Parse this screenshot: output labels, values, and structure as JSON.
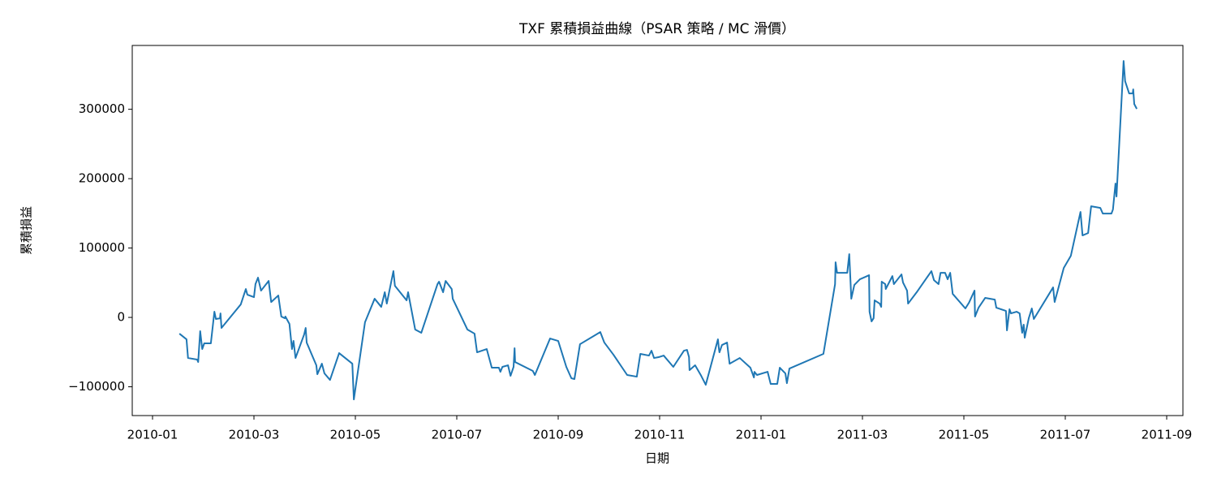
{
  "chart_data": {
    "type": "line",
    "title": "TXF 累積損益曲線（PSAR 策略 / MC 滑價）",
    "xlabel": "日期",
    "ylabel": "累積損益",
    "color": "#1f77b4",
    "xlim": [
      -0.4,
      20.32
    ],
    "ylim": [
      -141500,
      392000
    ],
    "xticks": [
      {
        "value": 0,
        "label": "2010-01"
      },
      {
        "value": 2,
        "label": "2010-03"
      },
      {
        "value": 4,
        "label": "2010-05"
      },
      {
        "value": 6,
        "label": "2010-07"
      },
      {
        "value": 8,
        "label": "2010-09"
      },
      {
        "value": 10,
        "label": "2010-11"
      },
      {
        "value": 12,
        "label": "2011-01"
      },
      {
        "value": 14,
        "label": "2011-03"
      },
      {
        "value": 16,
        "label": "2011-05"
      },
      {
        "value": 18,
        "label": "2011-07"
      },
      {
        "value": 20,
        "label": "2011-09"
      }
    ],
    "yticks": [
      {
        "value": -100000,
        "label": "−100000"
      },
      0,
      100000,
      200000,
      300000
    ],
    "x": [
      0.53,
      0.67,
      0.7,
      0.88,
      0.9,
      0.94,
      0.98,
      1.02,
      1.15,
      1.22,
      1.25,
      1.33,
      1.34,
      1.36,
      1.74,
      1.84,
      1.87,
      2.0,
      2.03,
      2.08,
      2.14,
      2.29,
      2.34,
      2.48,
      2.54,
      2.61,
      2.62,
      2.7,
      2.75,
      2.78,
      2.82,
      2.99,
      3.02,
      3.04,
      3.23,
      3.25,
      3.34,
      3.39,
      3.5,
      3.68,
      3.94,
      3.97,
      4.19,
      4.38,
      4.51,
      4.58,
      4.62,
      4.75,
      4.78,
      5.01,
      5.04,
      5.18,
      5.3,
      5.62,
      5.65,
      5.73,
      5.78,
      5.9,
      5.92,
      6.21,
      6.35,
      6.4,
      6.59,
      6.66,
      6.69,
      6.83,
      6.86,
      6.9,
      7.01,
      7.06,
      7.12,
      7.14,
      7.15,
      7.5,
      7.54,
      7.84,
      8.0,
      8.16,
      8.26,
      8.32,
      8.43,
      8.83,
      8.91,
      9.09,
      9.36,
      9.55,
      9.62,
      9.79,
      9.84,
      9.89,
      9.98,
      10.08,
      10.27,
      10.48,
      10.54,
      10.58,
      10.59,
      10.7,
      10.82,
      10.91,
      11.15,
      11.17,
      11.18,
      11.23,
      11.33,
      11.38,
      11.58,
      11.79,
      11.86,
      11.87,
      11.92,
      12.13,
      12.19,
      12.32,
      12.37,
      12.48,
      12.51,
      12.56,
      13.23,
      13.46,
      13.47,
      13.5,
      13.7,
      13.74,
      13.78,
      13.84,
      13.95,
      14.06,
      14.13,
      14.14,
      14.18,
      14.22,
      14.24,
      14.34,
      14.37,
      14.38,
      14.45,
      14.46,
      14.59,
      14.62,
      14.77,
      14.8,
      14.88,
      14.9,
      15.07,
      15.36,
      15.41,
      15.5,
      15.54,
      15.63,
      15.68,
      15.73,
      15.78,
      16.03,
      16.1,
      16.21,
      16.22,
      16.29,
      16.42,
      16.61,
      16.64,
      16.83,
      16.85,
      16.9,
      16.93,
      17.04,
      17.1,
      17.15,
      17.18,
      17.2,
      17.28,
      17.34,
      17.38,
      17.76,
      17.79,
      17.97,
      18.11,
      18.3,
      18.34,
      18.45,
      18.51,
      18.69,
      18.74,
      18.91,
      18.94,
      18.99,
      19.01,
      19.15,
      19.18,
      19.26,
      19.33,
      19.34,
      19.36,
      19.41
    ],
    "values": [
      -23400,
      -31600,
      -58500,
      -60800,
      -64300,
      -19900,
      -45600,
      -37400,
      -37400,
      8200,
      -2300,
      -1200,
      5800,
      -15200,
      18700,
      40900,
      32800,
      29200,
      48000,
      57300,
      38600,
      52600,
      22200,
      31600,
      1200,
      -1200,
      1200,
      -9400,
      -45600,
      -33900,
      -58500,
      -24600,
      -15200,
      -36300,
      -69000,
      -81900,
      -66700,
      -80700,
      -90100,
      -51500,
      -66700,
      -118200,
      -7000,
      26900,
      15200,
      36300,
      19900,
      66700,
      45600,
      24600,
      36300,
      -17500,
      -22200,
      48000,
      51500,
      36300,
      52600,
      40900,
      26900,
      -17500,
      -23400,
      -50300,
      -45600,
      -64300,
      -72500,
      -72500,
      -78400,
      -71300,
      -69000,
      -84200,
      -71300,
      -44400,
      -64300,
      -77200,
      -83000,
      -30400,
      -33900,
      -71300,
      -87700,
      -88900,
      -38600,
      -21100,
      -36300,
      -53800,
      -83000,
      -85400,
      -52600,
      -55000,
      -48000,
      -58500,
      -57300,
      -55000,
      -71300,
      -48000,
      -46800,
      -57300,
      -76000,
      -69000,
      -84200,
      -97100,
      -31600,
      -45600,
      -50300,
      -39800,
      -36300,
      -66700,
      -58500,
      -72500,
      -86600,
      -78400,
      -83000,
      -78400,
      -95900,
      -95900,
      -72500,
      -80700,
      -94800,
      -73700,
      -52600,
      48000,
      79500,
      64300,
      64300,
      91200,
      26900,
      46800,
      55000,
      58500,
      60800,
      8200,
      -5800,
      -1200,
      24600,
      19900,
      15200,
      51500,
      48000,
      40900,
      59600,
      48000,
      62000,
      50300,
      38600,
      19900,
      36300,
      66700,
      53800,
      48000,
      64300,
      64300,
      55000,
      64300,
      33900,
      12900,
      21100,
      38600,
      1200,
      14000,
      28100,
      25700,
      14000,
      9400,
      -18700,
      11700,
      5800,
      8200,
      5800,
      -22200,
      -10500,
      -29200,
      -1200,
      12900,
      -2300,
      43300,
      22200,
      71300,
      88900,
      152000,
      118200,
      121600,
      160200,
      157900,
      149700,
      149700,
      155600,
      193000,
      174300,
      369600,
      340400,
      322800,
      322800,
      328700,
      307600,
      300600
    ]
  }
}
